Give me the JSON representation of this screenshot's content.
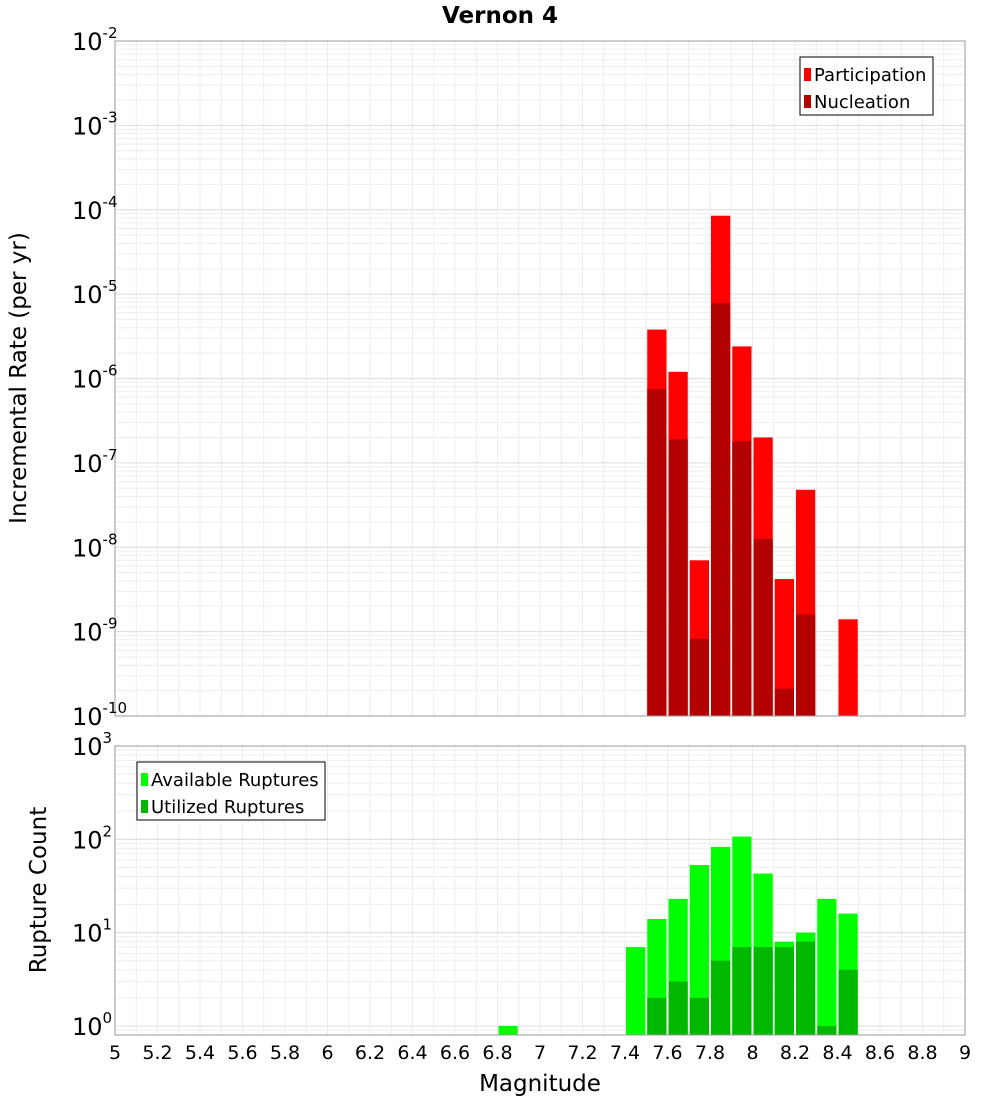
{
  "chart_data": [
    {
      "type": "bar",
      "title": "Vernon 4",
      "xlabel": "Magnitude",
      "ylabel": "Incremental Rate (per yr)",
      "yscale": "log",
      "ylim": [
        1e-10,
        0.01
      ],
      "xlim": [
        5,
        9
      ],
      "grid": true,
      "legend_position": "top-right",
      "x_ticks": [
        "5",
        "5.2",
        "5.4",
        "5.6",
        "5.8",
        "6",
        "6.2",
        "6.4",
        "6.6",
        "6.8",
        "7",
        "7.2",
        "7.4",
        "7.6",
        "7.8",
        "8",
        "8.2",
        "8.4",
        "8.6",
        "8.8",
        "9"
      ],
      "y_ticks": [
        {
          "base": "10",
          "exp": "-2"
        },
        {
          "base": "10",
          "exp": "-3"
        },
        {
          "base": "10",
          "exp": "-4"
        },
        {
          "base": "10",
          "exp": "-5"
        },
        {
          "base": "10",
          "exp": "-6"
        },
        {
          "base": "10",
          "exp": "-7"
        },
        {
          "base": "10",
          "exp": "-8"
        },
        {
          "base": "10",
          "exp": "-9"
        },
        {
          "base": "10",
          "exp": "-10"
        }
      ],
      "series": [
        {
          "name": "Participation",
          "color": "#ff0000",
          "x": [
            7.55,
            7.65,
            7.75,
            7.85,
            7.95,
            8.05,
            8.15,
            8.25,
            8.45
          ],
          "values": [
            3.8e-06,
            1.2e-06,
            7e-09,
            8.5e-05,
            2.4e-06,
            2e-07,
            4.2e-09,
            4.8e-08,
            1.4e-09
          ]
        },
        {
          "name": "Nucleation",
          "color": "#b30000",
          "x": [
            7.55,
            7.65,
            7.75,
            7.85,
            7.95,
            8.05,
            8.15,
            8.25
          ],
          "values": [
            7.5e-07,
            1.9e-07,
            8.2e-10,
            7.8e-06,
            1.8e-07,
            1.25e-08,
            2.1e-10,
            1.6e-09
          ]
        }
      ]
    },
    {
      "type": "bar",
      "xlabel": "Magnitude",
      "ylabel": "Rupture Count",
      "yscale": "log",
      "ylim": [
        0.8,
        1000
      ],
      "xlim": [
        5,
        9
      ],
      "grid": true,
      "legend_position": "top-left",
      "y_ticks": [
        {
          "base": "10",
          "exp": "3"
        },
        {
          "base": "10",
          "exp": "2"
        },
        {
          "base": "10",
          "exp": "1"
        },
        {
          "base": "10",
          "exp": "0"
        }
      ],
      "series": [
        {
          "name": "Available Ruptures",
          "color": "#00ff00",
          "x": [
            6.85,
            7.45,
            7.55,
            7.65,
            7.75,
            7.85,
            7.95,
            8.05,
            8.15,
            8.25,
            8.35,
            8.45
          ],
          "values": [
            1,
            7,
            14,
            23,
            53,
            83,
            107,
            43,
            8,
            10,
            23,
            16
          ]
        },
        {
          "name": "Utilized Ruptures",
          "color": "#00b800",
          "x": [
            7.55,
            7.65,
            7.75,
            7.85,
            7.95,
            8.05,
            8.15,
            8.25,
            8.35,
            8.45
          ],
          "values": [
            2,
            3,
            2,
            5,
            7,
            7,
            7,
            8,
            1,
            4
          ]
        }
      ]
    }
  ]
}
